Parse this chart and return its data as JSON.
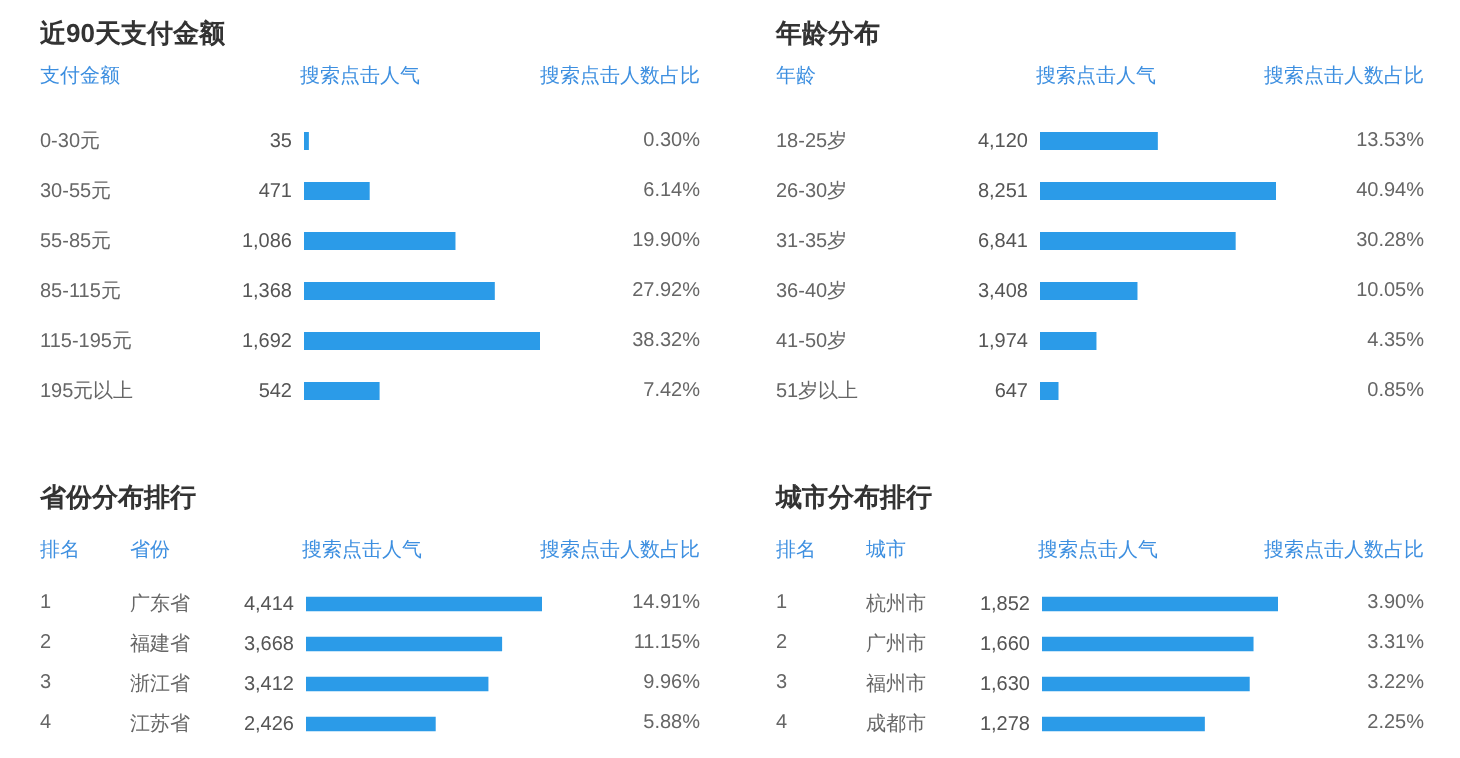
{
  "chart_data": [
    {
      "type": "bar",
      "orientation": "horizontal",
      "title": "近90天支付金额",
      "ylabel": "支付金额",
      "xlabel": "搜索点击人气",
      "categories": [
        "0-30元",
        "30-55元",
        "55-85元",
        "85-115元",
        "115-195元",
        "195元以上"
      ],
      "values": [
        35,
        471,
        1086,
        1368,
        1692,
        542
      ],
      "value_labels": [
        "35",
        "471",
        "1,086",
        "1,368",
        "1,692",
        "542"
      ],
      "color": "#2b9be8",
      "annotations": [
        "搜索点击人数占比",
        "0.30%",
        "6.14%",
        "19.90%",
        "27.92%",
        "38.32%",
        "7.42%"
      ]
    },
    {
      "type": "bar",
      "orientation": "horizontal",
      "title": "年龄分布",
      "ylabel": "年龄",
      "xlabel": "搜索点击人气",
      "categories": [
        "18-25岁",
        "26-30岁",
        "31-35岁",
        "36-40岁",
        "41-50岁",
        "51岁以上"
      ],
      "values": [
        4120,
        8251,
        6841,
        3408,
        1974,
        647
      ],
      "value_labels": [
        "4,120",
        "8,251",
        "6,841",
        "3,408",
        "1,974",
        "647"
      ],
      "color": "#2b9be8",
      "annotations": [
        "搜索点击人数占比",
        "13.53%",
        "40.94%",
        "30.28%",
        "10.05%",
        "4.35%",
        "0.85%"
      ]
    },
    {
      "type": "bar",
      "orientation": "horizontal",
      "title": "省份分布排行",
      "ylabel": "省份",
      "xlabel": "搜索点击人气",
      "categories": [
        "广东省",
        "福建省",
        "浙江省",
        "江苏省"
      ],
      "values": [
        4414,
        3668,
        3412,
        2426
      ],
      "value_labels": [
        "4,414",
        "3,668",
        "3,412",
        "2,426"
      ],
      "color": "#2b9be8",
      "annotations": [
        "排名",
        "搜索点击人数占比",
        "1",
        "2",
        "3",
        "4",
        "14.91%",
        "11.15%",
        "9.96%",
        "5.88%"
      ]
    },
    {
      "type": "bar",
      "orientation": "horizontal",
      "title": "城市分布排行",
      "ylabel": "城市",
      "xlabel": "搜索点击人气",
      "categories": [
        "杭州市",
        "广州市",
        "福州市",
        "成都市"
      ],
      "values": [
        1852,
        1660,
        1630,
        1278
      ],
      "value_labels": [
        "1,852",
        "1,660",
        "1,630",
        "1,278"
      ],
      "color": "#2b9be8",
      "annotations": [
        "排名",
        "搜索点击人数占比",
        "1",
        "2",
        "3",
        "4",
        "3.90%",
        "3.31%",
        "3.22%",
        "2.25%"
      ]
    }
  ]
}
